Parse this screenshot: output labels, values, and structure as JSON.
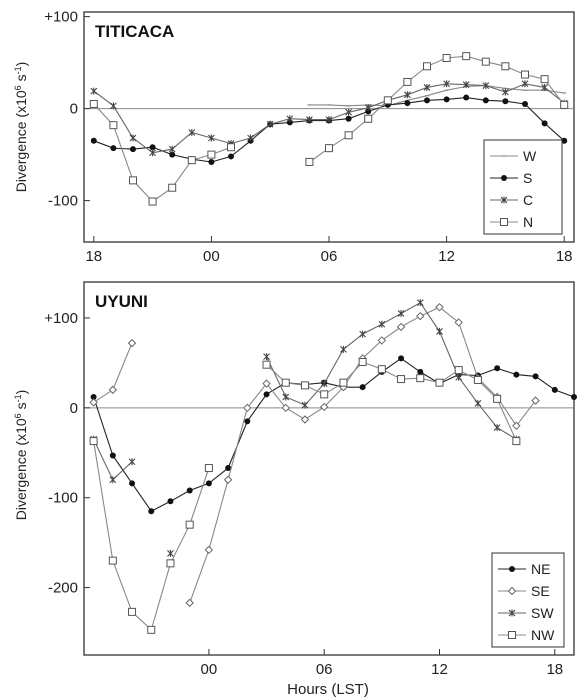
{
  "chart_data": [
    {
      "type": "line",
      "title": "TITICACA",
      "ylabel": "Divergence (x10",
      "ylabel_sup": "6",
      "ylabel_tail": " s",
      "ylabel_sup2": "-1",
      "ylabel_end": ")",
      "xlabel": "",
      "xlim": [
        17.5,
        42.5
      ],
      "ylim": [
        -145,
        105
      ],
      "x_ticks": [
        18,
        24,
        30,
        36,
        42
      ],
      "x_tick_labels": [
        "18",
        "00",
        "06",
        "12",
        "18"
      ],
      "y_ticks": [
        100,
        0,
        -100
      ],
      "y_tick_labels": [
        "+100",
        "0",
        "-100"
      ],
      "legend_position": "bottom-right",
      "series": [
        {
          "name": "W",
          "marker": "tick",
          "color": "#888888",
          "points": [
            [
              29,
              4
            ],
            [
              30,
              4
            ],
            [
              31,
              3
            ],
            [
              32,
              4
            ],
            [
              33,
              3
            ],
            [
              34,
              9
            ],
            [
              35,
              14
            ],
            [
              36,
              20
            ],
            [
              37,
              24
            ],
            [
              38,
              25
            ],
            [
              39,
              22
            ],
            [
              40,
              20
            ],
            [
              41,
              20
            ],
            [
              42,
              17
            ]
          ]
        },
        {
          "name": "S",
          "marker": "dot",
          "color": "#222222",
          "points": [
            [
              18,
              -35
            ],
            [
              19,
              -43
            ],
            [
              20,
              -44
            ],
            [
              21,
              -42
            ],
            [
              22,
              -50
            ],
            [
              23,
              -55
            ],
            [
              24,
              -58
            ],
            [
              25,
              -52
            ],
            [
              26,
              -35
            ],
            [
              27,
              -17
            ],
            [
              28,
              -15
            ],
            [
              29,
              -13
            ],
            [
              30,
              -13
            ],
            [
              31,
              -11
            ],
            [
              32,
              -3
            ],
            [
              33,
              4
            ],
            [
              34,
              6
            ],
            [
              35,
              9
            ],
            [
              36,
              10
            ],
            [
              37,
              12
            ],
            [
              38,
              9
            ],
            [
              39,
              8
            ],
            [
              40,
              5
            ],
            [
              41,
              -16
            ],
            [
              42,
              -35
            ]
          ]
        },
        {
          "name": "C",
          "marker": "star",
          "color": "#666666",
          "points": [
            [
              18,
              19
            ],
            [
              19,
              3
            ],
            [
              20,
              -32
            ],
            [
              21,
              -48
            ],
            [
              22,
              -44
            ],
            [
              23,
              -26
            ],
            [
              24,
              -32
            ],
            [
              25,
              -38
            ],
            [
              26,
              -32
            ],
            [
              27,
              -17
            ],
            [
              28,
              -11
            ],
            [
              29,
              -12
            ],
            [
              30,
              -12
            ],
            [
              31,
              -4
            ],
            [
              32,
              1
            ],
            [
              33,
              9
            ],
            [
              34,
              15
            ],
            [
              35,
              23
            ],
            [
              36,
              27
            ],
            [
              37,
              26
            ],
            [
              38,
              25
            ],
            [
              39,
              18
            ],
            [
              40,
              27
            ],
            [
              41,
              23
            ],
            [
              42,
              6
            ]
          ]
        },
        {
          "name": "N",
          "marker": "square",
          "color": "#888888",
          "points": [
            [
              18,
              5
            ],
            [
              19,
              -18
            ],
            [
              20,
              -78
            ],
            [
              21,
              -101
            ],
            [
              22,
              -86
            ],
            [
              23,
              -56
            ],
            [
              24,
              -50
            ],
            [
              25,
              -42
            ],
            [
              null,
              null
            ],
            [
              29,
              -58
            ],
            [
              30,
              -43
            ],
            [
              31,
              -29
            ],
            [
              32,
              -11
            ],
            [
              33,
              9
            ],
            [
              34,
              29
            ],
            [
              35,
              46
            ],
            [
              36,
              55
            ],
            [
              37,
              57
            ],
            [
              38,
              51
            ],
            [
              39,
              46
            ],
            [
              40,
              37
            ],
            [
              41,
              32
            ],
            [
              42,
              4
            ]
          ]
        }
      ]
    },
    {
      "type": "line",
      "title": "UYUNI",
      "ylabel": "Divergence (x10",
      "ylabel_sup": "6",
      "ylabel_tail": " s",
      "ylabel_sup2": "-1",
      "ylabel_end": ")",
      "xlabel": "Hours (LST)",
      "xlim": [
        17.5,
        43.0
      ],
      "ylim": [
        -275,
        140
      ],
      "x_ticks": [
        24,
        30,
        36,
        42
      ],
      "x_tick_labels": [
        "00",
        "06",
        "12",
        "18"
      ],
      "y_ticks": [
        100,
        0,
        -100,
        -200
      ],
      "y_tick_labels": [
        "+100",
        "0",
        "-100",
        "-200"
      ],
      "legend_position": "bottom-right",
      "series": [
        {
          "name": "NE",
          "marker": "dot",
          "color": "#222222",
          "points": [
            [
              18,
              12
            ],
            [
              19,
              -53
            ],
            [
              20,
              -84
            ],
            [
              21,
              -115
            ],
            [
              22,
              -104
            ],
            [
              23,
              -92
            ],
            [
              24,
              -84
            ],
            [
              25,
              -67
            ],
            [
              26,
              -15
            ],
            [
              27,
              15
            ],
            [
              28,
              28
            ],
            [
              29,
              26
            ],
            [
              30,
              28
            ],
            [
              31,
              23
            ],
            [
              32,
              23
            ],
            [
              33,
              40
            ],
            [
              34,
              55
            ],
            [
              35,
              40
            ],
            [
              36,
              27
            ],
            [
              37,
              37
            ],
            [
              38,
              36
            ],
            [
              39,
              44
            ],
            [
              40,
              37
            ],
            [
              41,
              35
            ],
            [
              42,
              20
            ],
            [
              43,
              12
            ]
          ]
        },
        {
          "name": "SE",
          "marker": "diamond",
          "color": "#888888",
          "points": [
            [
              18,
              6
            ],
            [
              19,
              20
            ],
            [
              20,
              72
            ],
            [
              null,
              null
            ],
            [
              23,
              -217
            ],
            [
              24,
              -158
            ],
            [
              25,
              -80
            ],
            [
              26,
              0
            ],
            [
              27,
              27
            ],
            [
              28,
              0
            ],
            [
              29,
              -13
            ],
            [
              30,
              1
            ],
            [
              31,
              23
            ],
            [
              32,
              55
            ],
            [
              33,
              75
            ],
            [
              34,
              90
            ],
            [
              35,
              102
            ],
            [
              36,
              112
            ],
            [
              37,
              95
            ],
            [
              38,
              33
            ],
            [
              39,
              12
            ],
            [
              40,
              -20
            ],
            [
              41,
              8
            ]
          ]
        },
        {
          "name": "SW",
          "marker": "star",
          "color": "#666666",
          "points": [
            [
              18,
              -35
            ],
            [
              19,
              -80
            ],
            [
              20,
              -60
            ],
            [
              null,
              null
            ],
            [
              22,
              -162
            ],
            [
              null,
              null
            ],
            [
              27,
              57
            ],
            [
              28,
              12
            ],
            [
              29,
              3
            ],
            [
              30,
              27
            ],
            [
              31,
              65
            ],
            [
              32,
              82
            ],
            [
              33,
              93
            ],
            [
              34,
              105
            ],
            [
              35,
              117
            ],
            [
              36,
              85
            ],
            [
              37,
              34
            ],
            [
              38,
              5
            ],
            [
              39,
              -22
            ],
            [
              40,
              -35
            ]
          ]
        },
        {
          "name": "NW",
          "marker": "square",
          "color": "#888888",
          "points": [
            [
              18,
              -37
            ],
            [
              19,
              -170
            ],
            [
              20,
              -227
            ],
            [
              21,
              -247
            ],
            [
              22,
              -173
            ],
            [
              23,
              -130
            ],
            [
              24,
              -67
            ],
            [
              null,
              null
            ],
            [
              27,
              48
            ],
            [
              28,
              28
            ],
            [
              29,
              25
            ],
            [
              30,
              15
            ],
            [
              31,
              28
            ],
            [
              32,
              51
            ],
            [
              33,
              43
            ],
            [
              34,
              32
            ],
            [
              35,
              33
            ],
            [
              36,
              28
            ],
            [
              37,
              42
            ],
            [
              38,
              31
            ],
            [
              39,
              10
            ],
            [
              40,
              -37
            ]
          ]
        }
      ]
    }
  ]
}
